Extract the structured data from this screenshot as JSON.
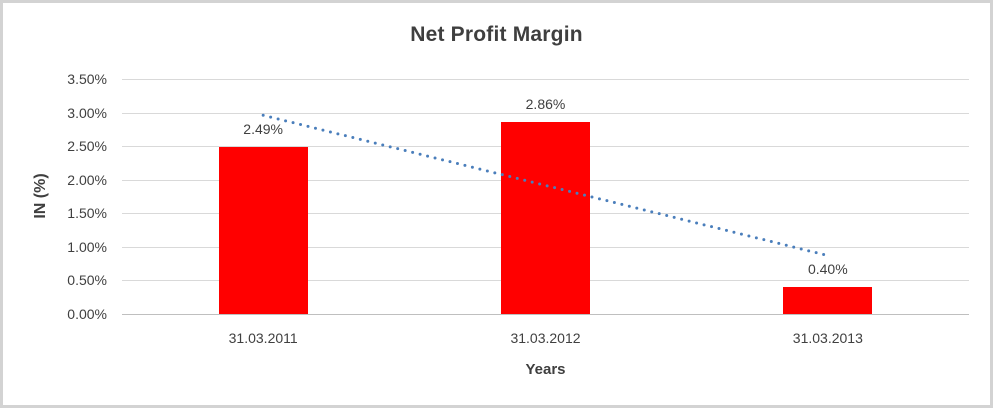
{
  "frame": {
    "background": "#FFFFFF",
    "border_color": "#D3D3D3"
  },
  "chart_data": {
    "type": "bar",
    "title": "Net Profit Margin",
    "xlabel": "Years",
    "ylabel": "IN (%)",
    "categories": [
      "31.03.2011",
      "31.03.2012",
      "31.03.2013"
    ],
    "series": [
      {
        "name": "Net Profit Margin",
        "values": [
          2.49,
          2.86,
          0.4
        ]
      }
    ],
    "data_labels": [
      "2.49%",
      "2.86%",
      "0.40%"
    ],
    "ylim": [
      0,
      3.5
    ],
    "ytick_interval": 0.5,
    "ytick_labels": [
      "3.50%",
      "3.00%",
      "2.50%",
      "2.00%",
      "1.50%",
      "1.00%",
      "0.50%",
      "0.00%"
    ],
    "grid": true,
    "legend_position": "none",
    "bar_color": "#FF0000",
    "trendline": {
      "type": "linear",
      "style": "dotted",
      "color": "#4A7EBB",
      "start_value": 2.96,
      "end_value": 0.87
    },
    "colors": {
      "gridline": "#D9D9D9",
      "axis_line": "#BFBFBF",
      "text": "#404040"
    }
  }
}
